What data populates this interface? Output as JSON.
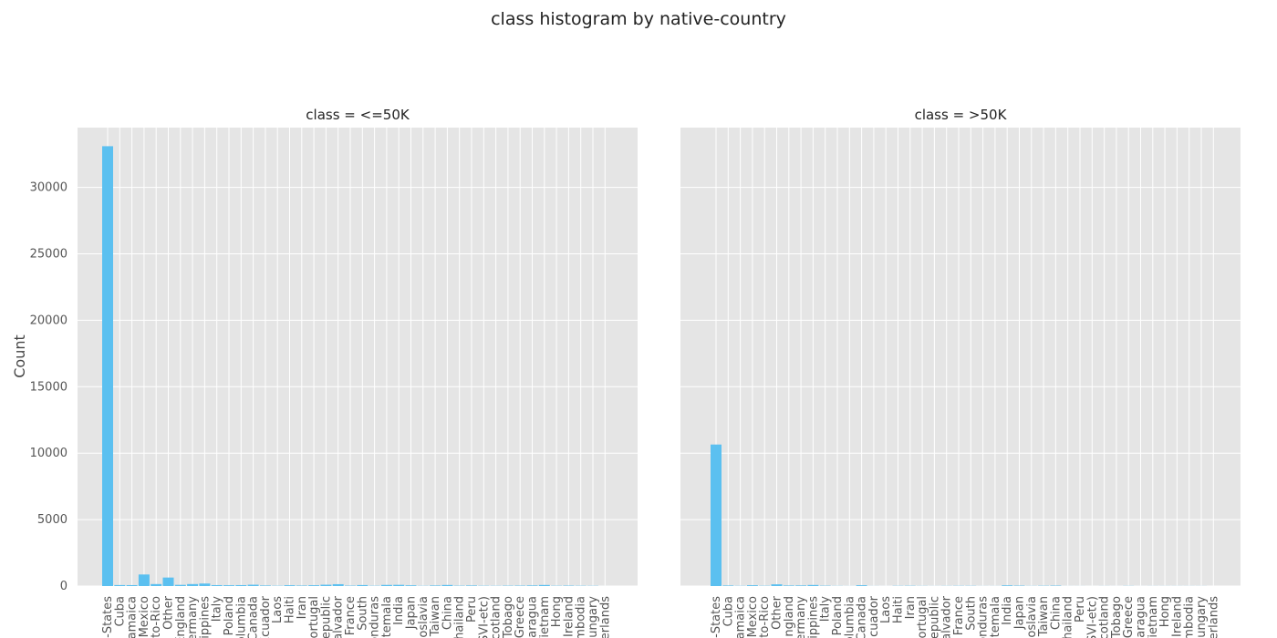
{
  "figure": {
    "title": "class histogram by native-country",
    "ylabel": "Count"
  },
  "colors": {
    "bar": "#5bc0f0",
    "panel_bg": "#e5e5e5",
    "grid": "#ffffff",
    "tick_text": "#555555"
  },
  "chart_data": [
    {
      "type": "bar",
      "title": "class = <=50K",
      "xlabel": "",
      "ylabel": "Count",
      "ylim": [
        0,
        34500
      ],
      "yticks": [
        0,
        5000,
        10000,
        15000,
        20000,
        25000,
        30000
      ],
      "grid": true,
      "categories": [
        "United-States",
        "Cuba",
        "Jamaica",
        "Mexico",
        "Puerto-Rico",
        "Other",
        "England",
        "Germany",
        "Philippines",
        "Italy",
        "Poland",
        "Columbia",
        "Canada",
        "Ecuador",
        "Laos",
        "Haiti",
        "Iran",
        "Portugal",
        "Dominican-Republic",
        "El-Salvador",
        "France",
        "South",
        "Honduras",
        "Guatemala",
        "India",
        "Japan",
        "Yugoslavia",
        "Taiwan",
        "China",
        "Thailand",
        "Peru",
        "Outlying-US(Guam-USVI-etc)",
        "Scotland",
        "Trinadad&Tobago",
        "Greece",
        "Nicaragua",
        "Vietnam",
        "Hong",
        "Ireland",
        "Cambodia",
        "Hungary",
        "Holand-Netherlands"
      ],
      "tick_labels": [
        "-States",
        "Cuba",
        "amaica",
        "Mexico",
        "rto-Rico",
        "Other",
        "England",
        "ermany",
        "ilippines",
        "Italy",
        "Poland",
        "olumbia",
        "Canada",
        "Ecuador",
        "Laos",
        "Haiti",
        "Iran",
        "ortugal",
        "epublic",
        "alvador",
        "France",
        "South",
        "onduras",
        "atemala",
        "India",
        "Japan",
        "goslavia",
        "Taiwan",
        "China",
        "hailand",
        "Peru",
        "SVI-etc)",
        "cotland",
        "Tobago",
        "Greece",
        "caragua",
        "Vietnam",
        "Hong",
        "Ireland",
        "mbodia",
        "ungary",
        "erlands"
      ],
      "values": [
        33100,
        75,
        70,
        870,
        150,
        640,
        90,
        150,
        190,
        70,
        60,
        70,
        100,
        40,
        20,
        60,
        35,
        60,
        100,
        140,
        30,
        75,
        20,
        85,
        90,
        55,
        15,
        40,
        80,
        25,
        40,
        20,
        15,
        25,
        30,
        45,
        80,
        20,
        30,
        20,
        15,
        1
      ]
    },
    {
      "type": "bar",
      "title": "class = >50K",
      "xlabel": "",
      "ylabel": "",
      "ylim": [
        0,
        34500
      ],
      "yticks": [
        0,
        5000,
        10000,
        15000,
        20000,
        25000,
        30000
      ],
      "grid": true,
      "categories": [
        "United-States",
        "Cuba",
        "Jamaica",
        "Mexico",
        "Puerto-Rico",
        "Other",
        "England",
        "Germany",
        "Philippines",
        "Italy",
        "Poland",
        "Columbia",
        "Canada",
        "Ecuador",
        "Laos",
        "Haiti",
        "Iran",
        "Portugal",
        "Dominican-Republic",
        "El-Salvador",
        "France",
        "South",
        "Honduras",
        "Guatemala",
        "India",
        "Japan",
        "Yugoslavia",
        "Taiwan",
        "China",
        "Thailand",
        "Peru",
        "Outlying-US(Guam-USVI-etc)",
        "Scotland",
        "Trinadad&Tobago",
        "Greece",
        "Nicaragua",
        "Vietnam",
        "Hong",
        "Ireland",
        "Cambodia",
        "Hungary",
        "Holand-Netherlands"
      ],
      "tick_labels": [
        "-States",
        "Cuba",
        "amaica",
        "Mexico",
        "to-Rico",
        "Other",
        "ngland",
        "ermany",
        "ilippines",
        "Italy",
        "Poland",
        "olumbia",
        "Canada",
        "cuador",
        "Laos",
        "Haiti",
        "Iran",
        "ortugal",
        "epublic",
        "alvador",
        "France",
        "South",
        "onduras",
        "atemala",
        "India",
        "Japan",
        "goslavia",
        "Taiwan",
        "China",
        "hailand",
        "Peru",
        "SVI-etc)",
        "cotland",
        "Tobago",
        "Greece",
        "caragua",
        "Vietnam",
        "Hong",
        "Ireland",
        "mbodia",
        "ungary",
        "erlands"
      ],
      "values": [
        10650,
        40,
        15,
        60,
        20,
        130,
        40,
        45,
        80,
        25,
        10,
        5,
        60,
        5,
        2,
        15,
        20,
        10,
        5,
        10,
        15,
        15,
        5,
        5,
        50,
        30,
        10,
        20,
        30,
        3,
        3,
        1,
        5,
        2,
        10,
        2,
        5,
        5,
        5,
        5,
        5,
        0
      ]
    }
  ]
}
